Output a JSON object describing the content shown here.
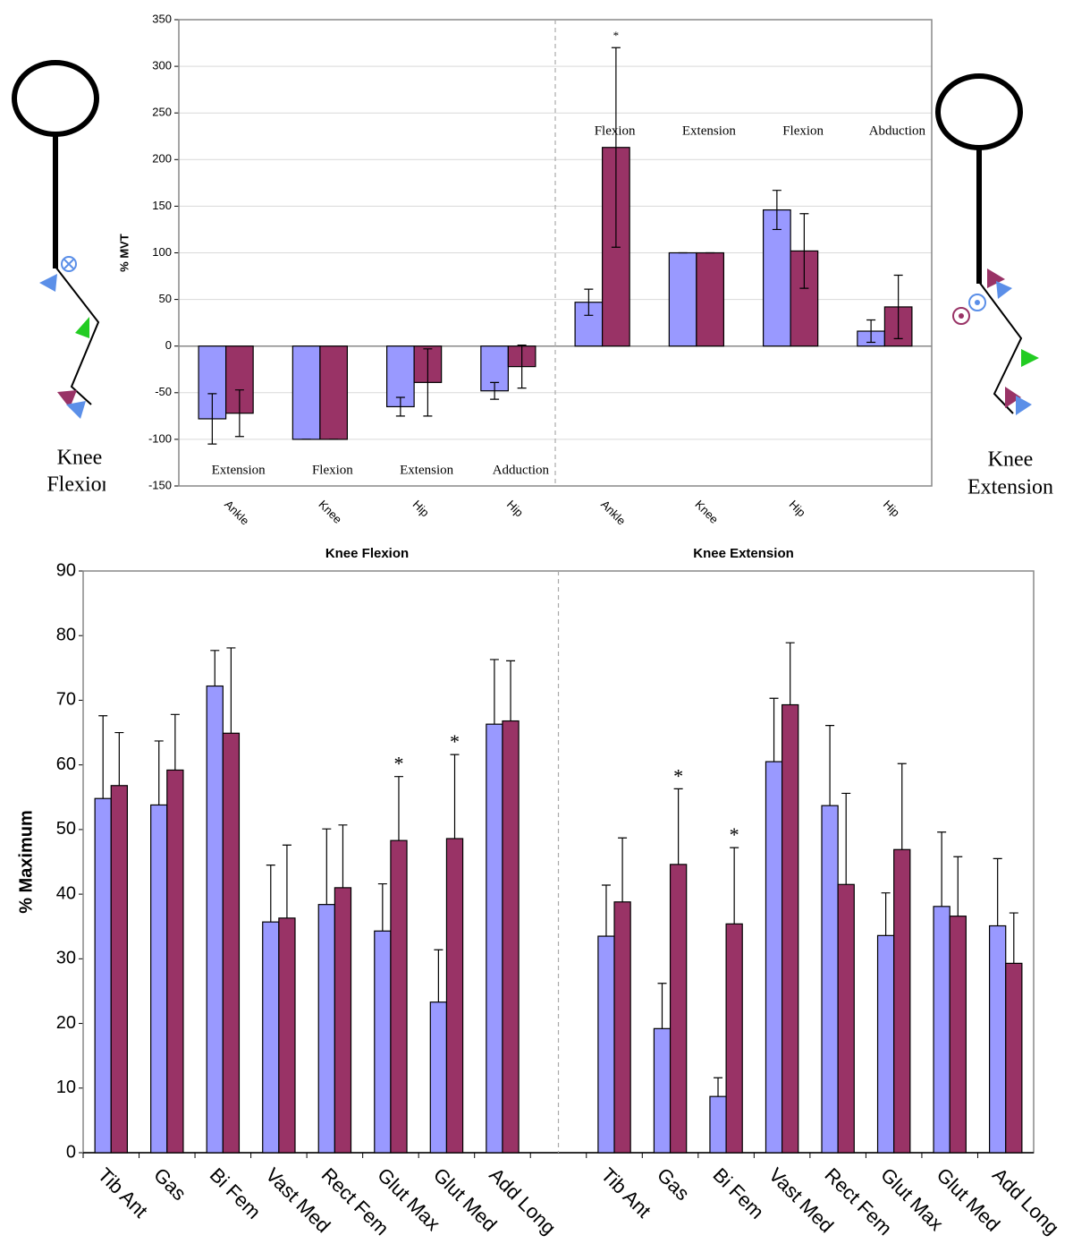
{
  "chart_data": [
    {
      "type": "bar",
      "ylabel": "% MVT",
      "ylim": [
        -150,
        350
      ],
      "yticks": [
        -150,
        -100,
        -50,
        0,
        50,
        100,
        150,
        200,
        250,
        300,
        350
      ],
      "grid": true,
      "error_bars": "both",
      "categories": [
        "Ankle",
        "Knee",
        "Hip",
        "Hip",
        "Ankle",
        "Knee",
        "Hip",
        "Hip"
      ],
      "movement_labels": [
        "Extension",
        "Flexion",
        "Extension",
        "Adduction",
        "Flexion",
        "Extension",
        "Flexion",
        "Abduction"
      ],
      "group_labels": [
        "Knee Flexion",
        "Knee Extension"
      ],
      "series": [
        {
          "color": "#9999ff",
          "values": [
            -78,
            -100,
            -65,
            -48,
            47,
            100,
            146,
            16
          ],
          "errors": [
            27,
            0,
            10,
            9,
            14,
            0,
            21,
            12
          ]
        },
        {
          "color": "#993366",
          "values": [
            -72,
            -100,
            -39,
            -22,
            213,
            100,
            102,
            42
          ],
          "errors": [
            25,
            0,
            36,
            23,
            107,
            0,
            40,
            34
          ]
        }
      ],
      "annotations": [
        {
          "text": "*",
          "category": 4
        }
      ]
    },
    {
      "type": "bar",
      "ylabel": "% Maximum",
      "ylim": [
        0,
        90
      ],
      "yticks": [
        0,
        10,
        20,
        30,
        40,
        50,
        60,
        70,
        80,
        90
      ],
      "grid": false,
      "error_bars": "plus",
      "categories": [
        "Tib Ant",
        "Gas",
        "Bi Fem",
        "Vast Med",
        "Rect Fem",
        "Glut Max",
        "Glut Med",
        "Add Long",
        null,
        "Tib Ant",
        "Gas",
        "Bi Fem",
        "Vast Med",
        "Rect Fem",
        "Glut Max",
        "Glut Med",
        "Add Long"
      ],
      "series": [
        {
          "color": "#9999ff",
          "values": [
            54.8,
            53.8,
            72.2,
            35.7,
            38.4,
            34.3,
            23.3,
            66.3,
            null,
            33.5,
            19.2,
            8.7,
            60.5,
            53.7,
            33.6,
            38.1,
            35.1
          ],
          "errors": [
            12.8,
            9.9,
            5.5,
            8.8,
            11.7,
            7.3,
            8.1,
            10.0,
            null,
            7.9,
            7.0,
            2.9,
            9.8,
            12.4,
            6.6,
            11.5,
            10.4
          ]
        },
        {
          "color": "#993366",
          "values": [
            56.8,
            59.2,
            64.9,
            36.3,
            41.0,
            48.3,
            48.6,
            66.8,
            null,
            38.8,
            44.6,
            35.4,
            69.3,
            41.5,
            46.9,
            36.6,
            29.3
          ],
          "errors": [
            8.2,
            8.6,
            13.2,
            11.3,
            9.7,
            9.9,
            13.0,
            9.3,
            null,
            9.9,
            11.7,
            11.8,
            9.6,
            14.1,
            13.3,
            9.2,
            7.8
          ]
        }
      ],
      "annotations": [
        {
          "text": "*",
          "category": 5
        },
        {
          "text": "*",
          "category": 6
        },
        {
          "text": "*",
          "category": 10
        },
        {
          "text": "*",
          "category": 11
        }
      ]
    }
  ],
  "figures": [
    [
      "Knee",
      "Flexion"
    ],
    [
      "Knee",
      "Extension"
    ]
  ]
}
